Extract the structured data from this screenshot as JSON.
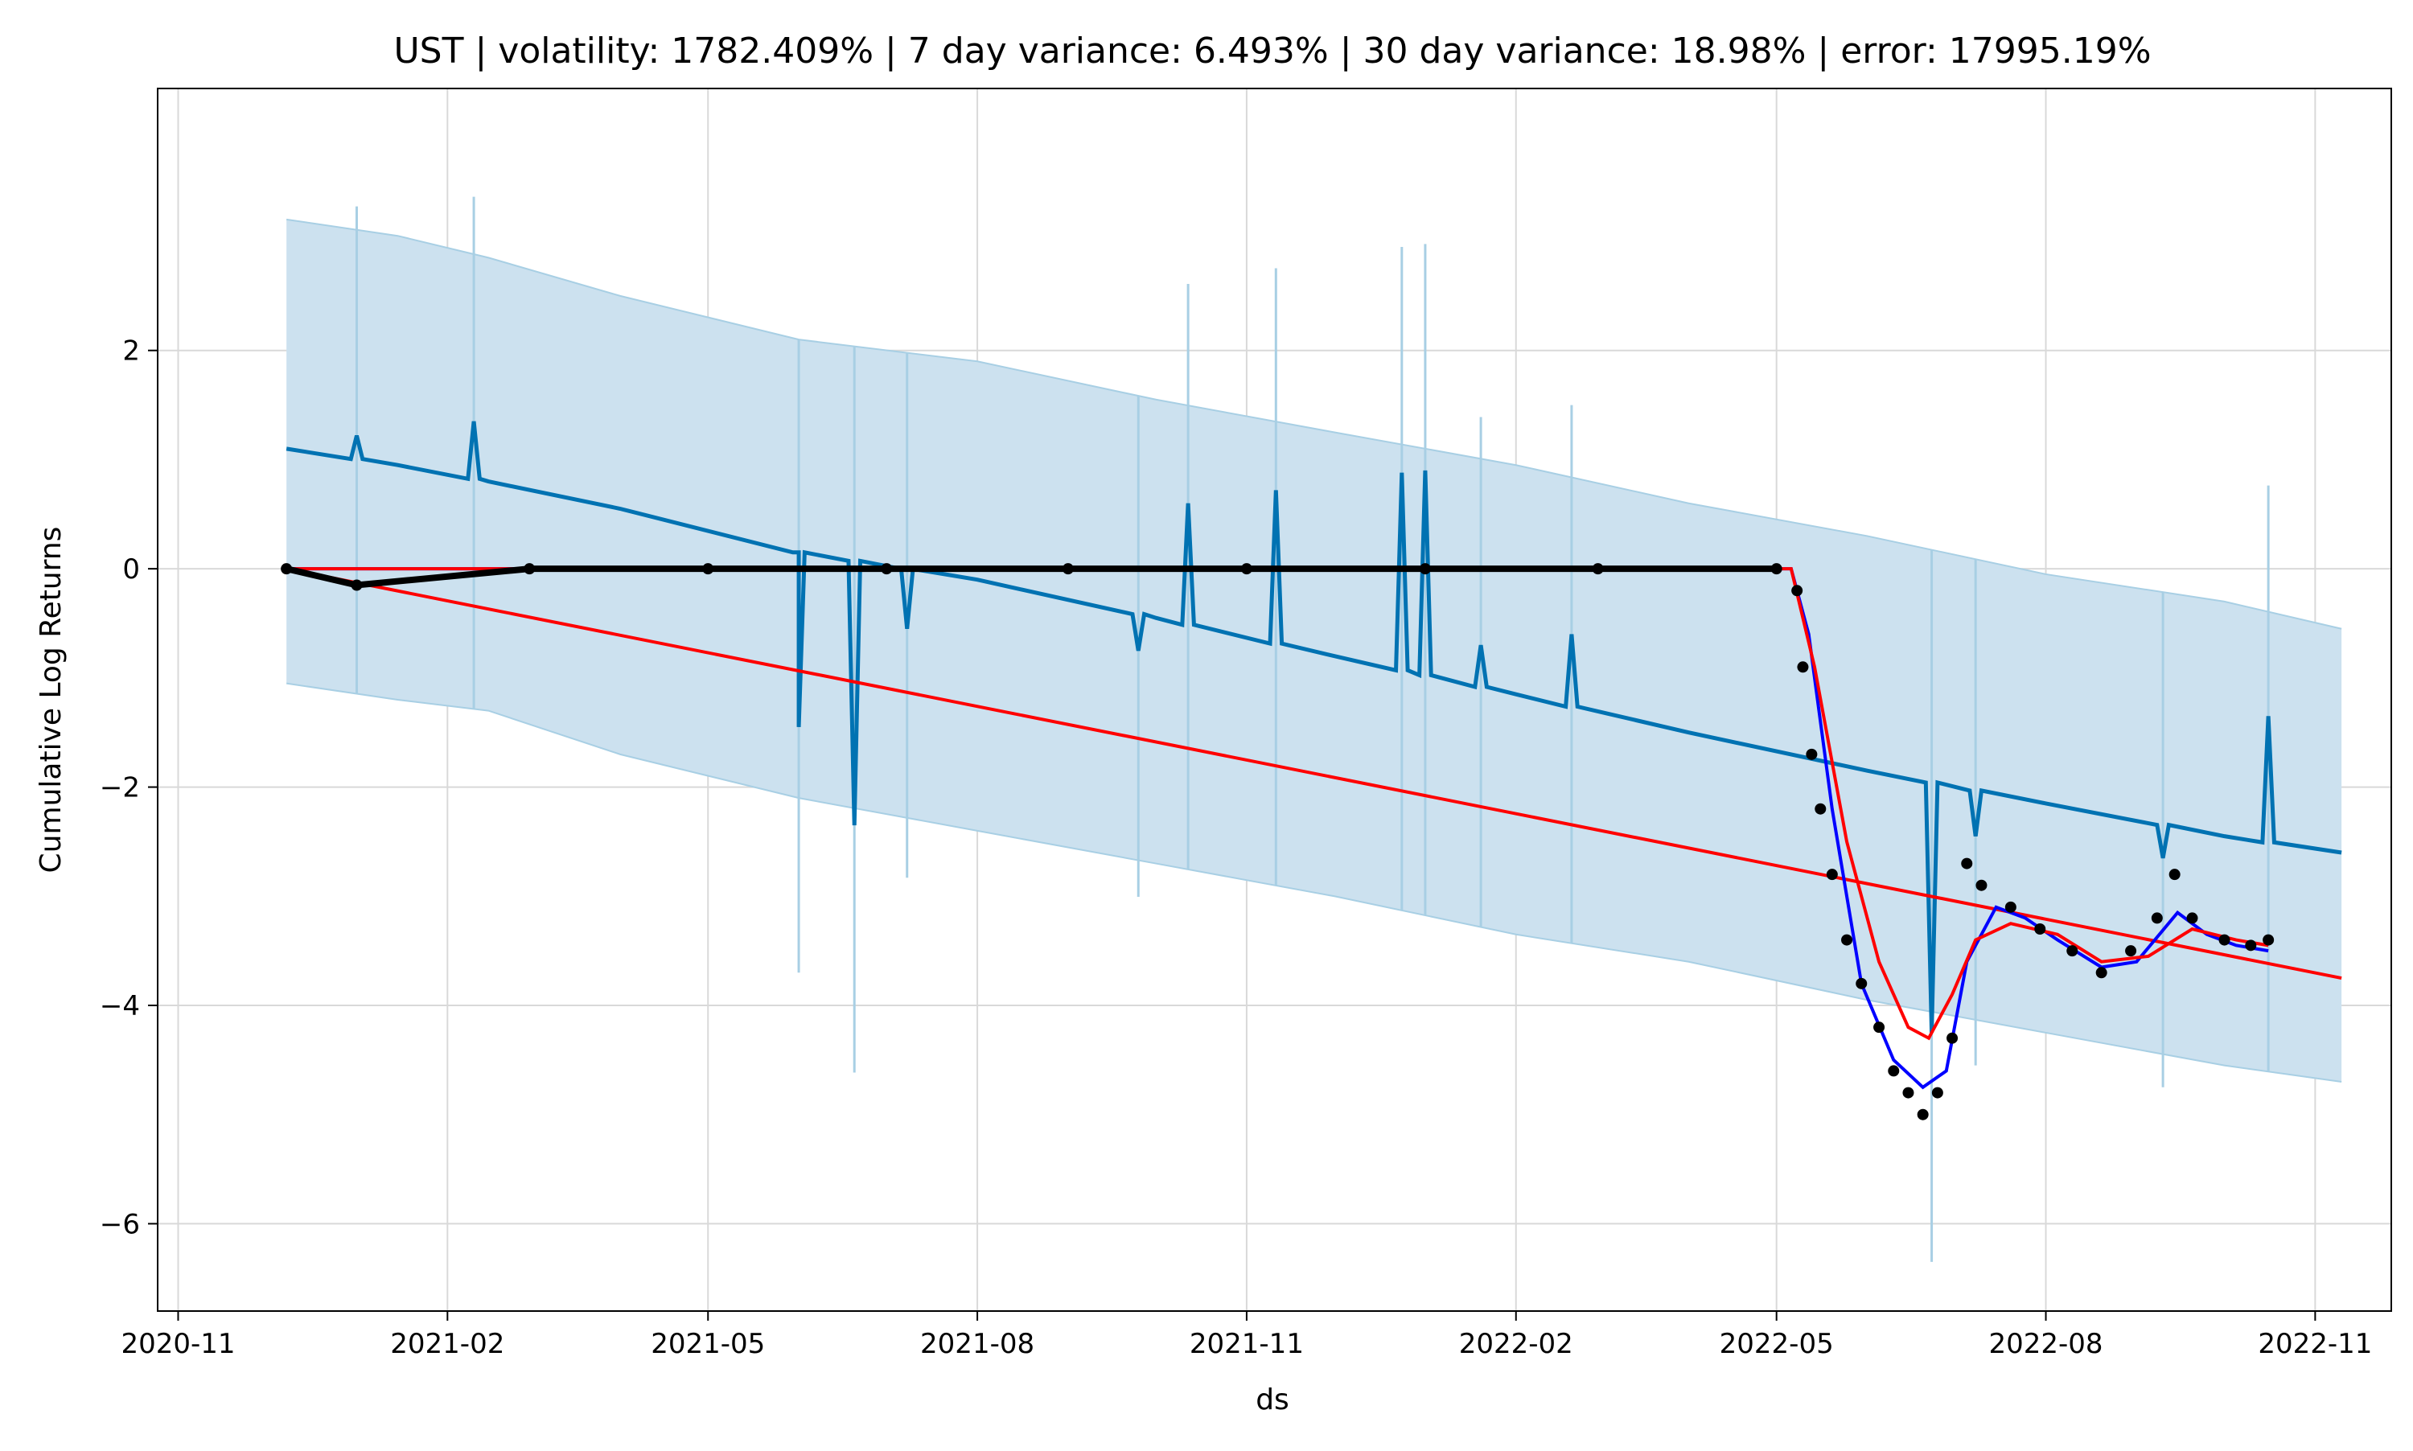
{
  "chart_data": {
    "type": "line",
    "title": "UST | volatility: 1782.409% | 7 day variance: 6.493% | 30 day variance: 18.98% | error: 17995.19%",
    "xlabel": "ds",
    "ylabel": "Cumulative Log Returns",
    "xlim": [
      "2020-10-25",
      "2022-11-27"
    ],
    "ylim": [
      -6.8,
      4.4
    ],
    "grid": true,
    "x_ticks": [
      "2020-11",
      "2021-02",
      "2021-05",
      "2021-08",
      "2021-11",
      "2022-02",
      "2022-05",
      "2022-08",
      "2022-11"
    ],
    "y_ticks": [
      2,
      0,
      -2,
      -4,
      -6
    ],
    "y_tick_labels": [
      "2",
      "0",
      "−2",
      "−4",
      "−6"
    ],
    "colors": {
      "band_fill": "#cce1ef",
      "band_edge": "#a8cfe4",
      "forecast": "#0072b2",
      "actual": "#000000",
      "smooth_blue": "#0000ff",
      "smooth_red": "#ff0000",
      "grid": "#d9d9d9"
    },
    "series": [
      {
        "kind": "forecast_band",
        "x": [
          "2020-12-08",
          "2021-01-15",
          "2021-02-15",
          "2021-04-01",
          "2021-06-01",
          "2021-08-01",
          "2021-10-01",
          "2021-12-01",
          "2022-02-01",
          "2022-04-01",
          "2022-06-01",
          "2022-08-01",
          "2022-10-01",
          "2022-11-10"
        ],
        "upper": [
          3.2,
          3.05,
          2.85,
          2.5,
          2.1,
          1.9,
          1.55,
          1.25,
          0.95,
          0.6,
          0.3,
          -0.05,
          -0.3,
          -0.55
        ],
        "lower": [
          -1.05,
          -1.2,
          -1.3,
          -1.7,
          -2.1,
          -2.4,
          -2.7,
          -3.0,
          -3.35,
          -3.6,
          -3.95,
          -4.25,
          -4.55,
          -4.7
        ]
      },
      {
        "kind": "forecast_trend",
        "x": [
          "2020-12-08",
          "2021-01-15",
          "2021-02-15",
          "2021-04-01",
          "2021-06-01",
          "2021-08-01",
          "2021-10-01",
          "2021-12-01",
          "2022-02-01",
          "2022-04-01",
          "2022-06-01",
          "2022-08-01",
          "2022-10-01",
          "2022-11-10"
        ],
        "y": [
          1.1,
          0.95,
          0.8,
          0.55,
          0.15,
          -0.1,
          -0.45,
          -0.8,
          -1.15,
          -1.5,
          -1.85,
          -2.15,
          -2.45,
          -2.6
        ]
      },
      {
        "kind": "forecast_spikes",
        "points": [
          {
            "x": "2021-01-01",
            "y": 1.22
          },
          {
            "x": "2021-02-10",
            "y": 1.35
          },
          {
            "x": "2021-06-01",
            "y": -1.45
          },
          {
            "x": "2021-06-20",
            "y": -2.35
          },
          {
            "x": "2021-07-08",
            "y": -0.55
          },
          {
            "x": "2021-09-25",
            "y": -0.75
          },
          {
            "x": "2021-10-12",
            "y": 0.6
          },
          {
            "x": "2021-11-11",
            "y": 0.72
          },
          {
            "x": "2021-12-24",
            "y": 0.88
          },
          {
            "x": "2022-01-01",
            "y": 0.9
          },
          {
            "x": "2022-01-20",
            "y": -0.7
          },
          {
            "x": "2022-02-20",
            "y": -0.6
          },
          {
            "x": "2022-06-23",
            "y": -4.25
          },
          {
            "x": "2022-07-08",
            "y": -2.45
          },
          {
            "x": "2022-09-10",
            "y": -2.65
          },
          {
            "x": "2022-10-16",
            "y": -1.35
          }
        ]
      },
      {
        "kind": "actual_points",
        "x": [
          "2020-12-08",
          "2021-01-01",
          "2021-03-01",
          "2021-05-01",
          "2021-07-01",
          "2021-09-01",
          "2021-11-01",
          "2022-01-01",
          "2022-03-01",
          "2022-05-01",
          "2022-05-08",
          "2022-05-10",
          "2022-05-13",
          "2022-05-16",
          "2022-05-20",
          "2022-05-25",
          "2022-05-30",
          "2022-06-05",
          "2022-06-10",
          "2022-06-15",
          "2022-06-20",
          "2022-06-25",
          "2022-06-30",
          "2022-07-05",
          "2022-07-10",
          "2022-07-20",
          "2022-07-30",
          "2022-08-10",
          "2022-08-20",
          "2022-08-30",
          "2022-09-08",
          "2022-09-14",
          "2022-09-20",
          "2022-10-01",
          "2022-10-10",
          "2022-10-16"
        ],
        "y": [
          0,
          -0.15,
          0,
          0,
          0,
          0,
          0,
          0,
          0,
          0,
          -0.2,
          -0.9,
          -1.7,
          -2.2,
          -2.8,
          -3.4,
          -3.8,
          -4.2,
          -4.6,
          -4.8,
          -5.0,
          -4.8,
          -4.3,
          -2.7,
          -2.9,
          -3.1,
          -3.3,
          -3.5,
          -3.7,
          -3.5,
          -3.2,
          -2.8,
          -3.2,
          -3.4,
          -3.45,
          -3.4
        ]
      },
      {
        "kind": "smooth_blue",
        "x": [
          "2020-12-08",
          "2022-05-06",
          "2022-05-12",
          "2022-05-20",
          "2022-05-30",
          "2022-06-10",
          "2022-06-20",
          "2022-06-28",
          "2022-07-05",
          "2022-07-15",
          "2022-07-25",
          "2022-08-05",
          "2022-08-20",
          "2022-09-01",
          "2022-09-15",
          "2022-09-25",
          "2022-10-05",
          "2022-10-16"
        ],
        "y": [
          0,
          0,
          -0.6,
          -2.2,
          -3.8,
          -4.5,
          -4.75,
          -4.6,
          -3.6,
          -3.1,
          -3.2,
          -3.4,
          -3.65,
          -3.6,
          -3.15,
          -3.35,
          -3.45,
          -3.5
        ]
      },
      {
        "kind": "smooth_red",
        "x": [
          "2020-12-08",
          "2022-05-06",
          "2022-05-14",
          "2022-05-25",
          "2022-06-05",
          "2022-06-15",
          "2022-06-22",
          "2022-06-30",
          "2022-07-08",
          "2022-07-20",
          "2022-08-05",
          "2022-08-20",
          "2022-09-05",
          "2022-09-20",
          "2022-10-05",
          "2022-10-16"
        ],
        "y": [
          0,
          0,
          -0.9,
          -2.5,
          -3.6,
          -4.2,
          -4.3,
          -3.9,
          -3.4,
          -3.25,
          -3.35,
          -3.6,
          -3.55,
          -3.3,
          -3.4,
          -3.45
        ]
      },
      {
        "kind": "regression_line",
        "x": [
          "2020-12-08",
          "2022-11-10"
        ],
        "y": [
          0,
          -3.75
        ]
      }
    ]
  }
}
